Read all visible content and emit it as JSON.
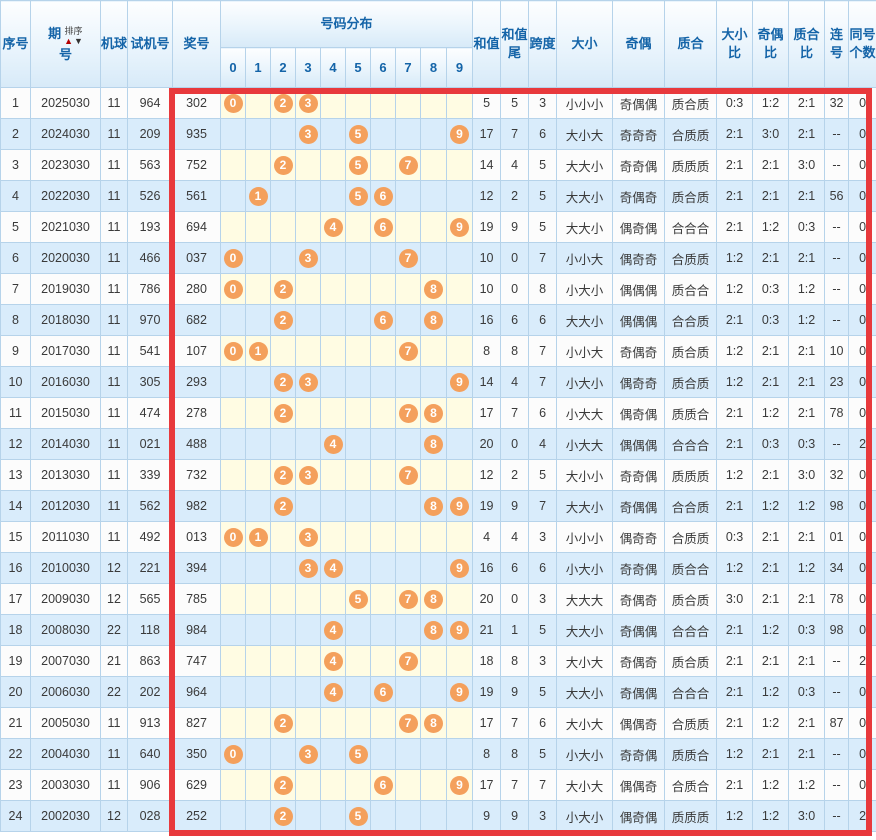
{
  "colors": {
    "ball": "#F4A05C",
    "highlight_border": "#E8393C",
    "header_text": "#1464A8",
    "row_alt_bg": "#D9ECFB",
    "dist_bg": "#FFFCE3",
    "grid": "#B6D3EA"
  },
  "header": {
    "seq": "序号",
    "period_top": "期",
    "period_bottom": "号",
    "sort_label": "排序",
    "sort_up_icon": "▲",
    "sort_down_icon": "▼",
    "machine": "机球",
    "test": "试机号",
    "prize": "奖号",
    "distribution": "号码分布",
    "sum": "和值",
    "sum_tail": "和值尾",
    "span": "跨度",
    "size": "大小",
    "parity": "奇偶",
    "prime": "质合",
    "size_ratio": "大小比",
    "parity_ratio": "奇偶比",
    "prime_ratio": "质合比",
    "consecutive": "连号",
    "same_count": "同号个数"
  },
  "distribution": {
    "digits": [
      "0",
      "1",
      "2",
      "3",
      "4",
      "5",
      "6",
      "7",
      "8",
      "9"
    ]
  },
  "rows": [
    {
      "seq": "1",
      "period": "2025030",
      "machine": "11",
      "test": "964",
      "prize": "302",
      "balls": [
        0,
        2,
        3
      ],
      "sum": "5",
      "tail": "5",
      "span": "3",
      "size": "小小小",
      "parity": "奇偶偶",
      "prime": "质合质",
      "size_ratio": "0:3",
      "parity_ratio": "1:2",
      "prime_ratio": "2:1",
      "consec": "32",
      "same": "0"
    },
    {
      "seq": "2",
      "period": "2024030",
      "machine": "11",
      "test": "209",
      "prize": "935",
      "balls": [
        3,
        5,
        9
      ],
      "sum": "17",
      "tail": "7",
      "span": "6",
      "size": "大小大",
      "parity": "奇奇奇",
      "prime": "合质质",
      "size_ratio": "2:1",
      "parity_ratio": "3:0",
      "prime_ratio": "2:1",
      "consec": "--",
      "same": "0"
    },
    {
      "seq": "3",
      "period": "2023030",
      "machine": "11",
      "test": "563",
      "prize": "752",
      "balls": [
        2,
        5,
        7
      ],
      "sum": "14",
      "tail": "4",
      "span": "5",
      "size": "大大小",
      "parity": "奇奇偶",
      "prime": "质质质",
      "size_ratio": "2:1",
      "parity_ratio": "2:1",
      "prime_ratio": "3:0",
      "consec": "--",
      "same": "0"
    },
    {
      "seq": "4",
      "period": "2022030",
      "machine": "11",
      "test": "526",
      "prize": "561",
      "balls": [
        1,
        5,
        6
      ],
      "sum": "12",
      "tail": "2",
      "span": "5",
      "size": "大大小",
      "parity": "奇偶奇",
      "prime": "质合质",
      "size_ratio": "2:1",
      "parity_ratio": "2:1",
      "prime_ratio": "2:1",
      "consec": "56",
      "same": "0"
    },
    {
      "seq": "5",
      "period": "2021030",
      "machine": "11",
      "test": "193",
      "prize": "694",
      "balls": [
        4,
        6,
        9
      ],
      "sum": "19",
      "tail": "9",
      "span": "5",
      "size": "大大小",
      "parity": "偶奇偶",
      "prime": "合合合",
      "size_ratio": "2:1",
      "parity_ratio": "1:2",
      "prime_ratio": "0:3",
      "consec": "--",
      "same": "0"
    },
    {
      "seq": "6",
      "period": "2020030",
      "machine": "11",
      "test": "466",
      "prize": "037",
      "balls": [
        0,
        3,
        7
      ],
      "sum": "10",
      "tail": "0",
      "span": "7",
      "size": "小小大",
      "parity": "偶奇奇",
      "prime": "合质质",
      "size_ratio": "1:2",
      "parity_ratio": "2:1",
      "prime_ratio": "2:1",
      "consec": "--",
      "same": "0"
    },
    {
      "seq": "7",
      "period": "2019030",
      "machine": "11",
      "test": "786",
      "prize": "280",
      "balls": [
        0,
        2,
        8
      ],
      "sum": "10",
      "tail": "0",
      "span": "8",
      "size": "小大小",
      "parity": "偶偶偶",
      "prime": "质合合",
      "size_ratio": "1:2",
      "parity_ratio": "0:3",
      "prime_ratio": "1:2",
      "consec": "--",
      "same": "0"
    },
    {
      "seq": "8",
      "period": "2018030",
      "machine": "11",
      "test": "970",
      "prize": "682",
      "balls": [
        2,
        6,
        8
      ],
      "sum": "16",
      "tail": "6",
      "span": "6",
      "size": "大大小",
      "parity": "偶偶偶",
      "prime": "合合质",
      "size_ratio": "2:1",
      "parity_ratio": "0:3",
      "prime_ratio": "1:2",
      "consec": "--",
      "same": "0"
    },
    {
      "seq": "9",
      "period": "2017030",
      "machine": "11",
      "test": "541",
      "prize": "107",
      "balls": [
        0,
        1,
        7
      ],
      "sum": "8",
      "tail": "8",
      "span": "7",
      "size": "小小大",
      "parity": "奇偶奇",
      "prime": "质合质",
      "size_ratio": "1:2",
      "parity_ratio": "2:1",
      "prime_ratio": "2:1",
      "consec": "10",
      "same": "0"
    },
    {
      "seq": "10",
      "period": "2016030",
      "machine": "11",
      "test": "305",
      "prize": "293",
      "balls": [
        2,
        3,
        9
      ],
      "sum": "14",
      "tail": "4",
      "span": "7",
      "size": "小大小",
      "parity": "偶奇奇",
      "prime": "质合质",
      "size_ratio": "1:2",
      "parity_ratio": "2:1",
      "prime_ratio": "2:1",
      "consec": "23",
      "same": "0"
    },
    {
      "seq": "11",
      "period": "2015030",
      "machine": "11",
      "test": "474",
      "prize": "278",
      "balls": [
        2,
        7,
        8
      ],
      "sum": "17",
      "tail": "7",
      "span": "6",
      "size": "小大大",
      "parity": "偶奇偶",
      "prime": "质质合",
      "size_ratio": "2:1",
      "parity_ratio": "1:2",
      "prime_ratio": "2:1",
      "consec": "78",
      "same": "0"
    },
    {
      "seq": "12",
      "period": "2014030",
      "machine": "11",
      "test": "021",
      "prize": "488",
      "balls": [
        4,
        8
      ],
      "sum": "20",
      "tail": "0",
      "span": "4",
      "size": "小大大",
      "parity": "偶偶偶",
      "prime": "合合合",
      "size_ratio": "2:1",
      "parity_ratio": "0:3",
      "prime_ratio": "0:3",
      "consec": "--",
      "same": "2"
    },
    {
      "seq": "13",
      "period": "2013030",
      "machine": "11",
      "test": "339",
      "prize": "732",
      "balls": [
        2,
        3,
        7
      ],
      "sum": "12",
      "tail": "2",
      "span": "5",
      "size": "大小小",
      "parity": "奇奇偶",
      "prime": "质质质",
      "size_ratio": "1:2",
      "parity_ratio": "2:1",
      "prime_ratio": "3:0",
      "consec": "32",
      "same": "0"
    },
    {
      "seq": "14",
      "period": "2012030",
      "machine": "11",
      "test": "562",
      "prize": "982",
      "balls": [
        2,
        8,
        9
      ],
      "sum": "19",
      "tail": "9",
      "span": "7",
      "size": "大大小",
      "parity": "奇偶偶",
      "prime": "合合质",
      "size_ratio": "2:1",
      "parity_ratio": "1:2",
      "prime_ratio": "1:2",
      "consec": "98",
      "same": "0"
    },
    {
      "seq": "15",
      "period": "2011030",
      "machine": "11",
      "test": "492",
      "prize": "013",
      "balls": [
        0,
        1,
        3
      ],
      "sum": "4",
      "tail": "4",
      "span": "3",
      "size": "小小小",
      "parity": "偶奇奇",
      "prime": "合质质",
      "size_ratio": "0:3",
      "parity_ratio": "2:1",
      "prime_ratio": "2:1",
      "consec": "01",
      "same": "0"
    },
    {
      "seq": "16",
      "period": "2010030",
      "machine": "12",
      "test": "221",
      "prize": "394",
      "balls": [
        3,
        4,
        9
      ],
      "sum": "16",
      "tail": "6",
      "span": "6",
      "size": "小大小",
      "parity": "奇奇偶",
      "prime": "质合合",
      "size_ratio": "1:2",
      "parity_ratio": "2:1",
      "prime_ratio": "1:2",
      "consec": "34",
      "same": "0"
    },
    {
      "seq": "17",
      "period": "2009030",
      "machine": "12",
      "test": "565",
      "prize": "785",
      "balls": [
        5,
        7,
        8
      ],
      "sum": "20",
      "tail": "0",
      "span": "3",
      "size": "大大大",
      "parity": "奇偶奇",
      "prime": "质合质",
      "size_ratio": "3:0",
      "parity_ratio": "2:1",
      "prime_ratio": "2:1",
      "consec": "78",
      "same": "0"
    },
    {
      "seq": "18",
      "period": "2008030",
      "machine": "22",
      "test": "118",
      "prize": "984",
      "balls": [
        4,
        8,
        9
      ],
      "sum": "21",
      "tail": "1",
      "span": "5",
      "size": "大大小",
      "parity": "奇偶偶",
      "prime": "合合合",
      "size_ratio": "2:1",
      "parity_ratio": "1:2",
      "prime_ratio": "0:3",
      "consec": "98",
      "same": "0"
    },
    {
      "seq": "19",
      "period": "2007030",
      "machine": "21",
      "test": "863",
      "prize": "747",
      "balls": [
        4,
        7
      ],
      "sum": "18",
      "tail": "8",
      "span": "3",
      "size": "大小大",
      "parity": "奇偶奇",
      "prime": "质合质",
      "size_ratio": "2:1",
      "parity_ratio": "2:1",
      "prime_ratio": "2:1",
      "consec": "--",
      "same": "2"
    },
    {
      "seq": "20",
      "period": "2006030",
      "machine": "22",
      "test": "202",
      "prize": "964",
      "balls": [
        4,
        6,
        9
      ],
      "sum": "19",
      "tail": "9",
      "span": "5",
      "size": "大大小",
      "parity": "奇偶偶",
      "prime": "合合合",
      "size_ratio": "2:1",
      "parity_ratio": "1:2",
      "prime_ratio": "0:3",
      "consec": "--",
      "same": "0"
    },
    {
      "seq": "21",
      "period": "2005030",
      "machine": "11",
      "test": "913",
      "prize": "827",
      "balls": [
        2,
        7,
        8
      ],
      "sum": "17",
      "tail": "7",
      "span": "6",
      "size": "大小大",
      "parity": "偶偶奇",
      "prime": "合质质",
      "size_ratio": "2:1",
      "parity_ratio": "1:2",
      "prime_ratio": "2:1",
      "consec": "87",
      "same": "0"
    },
    {
      "seq": "22",
      "period": "2004030",
      "machine": "11",
      "test": "640",
      "prize": "350",
      "balls": [
        0,
        3,
        5
      ],
      "sum": "8",
      "tail": "8",
      "span": "5",
      "size": "小大小",
      "parity": "奇奇偶",
      "prime": "质质合",
      "size_ratio": "1:2",
      "parity_ratio": "2:1",
      "prime_ratio": "2:1",
      "consec": "--",
      "same": "0"
    },
    {
      "seq": "23",
      "period": "2003030",
      "machine": "11",
      "test": "906",
      "prize": "629",
      "balls": [
        2,
        6,
        9
      ],
      "sum": "17",
      "tail": "7",
      "span": "7",
      "size": "大小大",
      "parity": "偶偶奇",
      "prime": "合质合",
      "size_ratio": "2:1",
      "parity_ratio": "1:2",
      "prime_ratio": "1:2",
      "consec": "--",
      "same": "0"
    },
    {
      "seq": "24",
      "period": "2002030",
      "machine": "12",
      "test": "028",
      "prize": "252",
      "balls": [
        2,
        5
      ],
      "sum": "9",
      "tail": "9",
      "span": "3",
      "size": "小大小",
      "parity": "偶奇偶",
      "prime": "质质质",
      "size_ratio": "1:2",
      "parity_ratio": "1:2",
      "prime_ratio": "3:0",
      "consec": "--",
      "same": "2"
    }
  ]
}
